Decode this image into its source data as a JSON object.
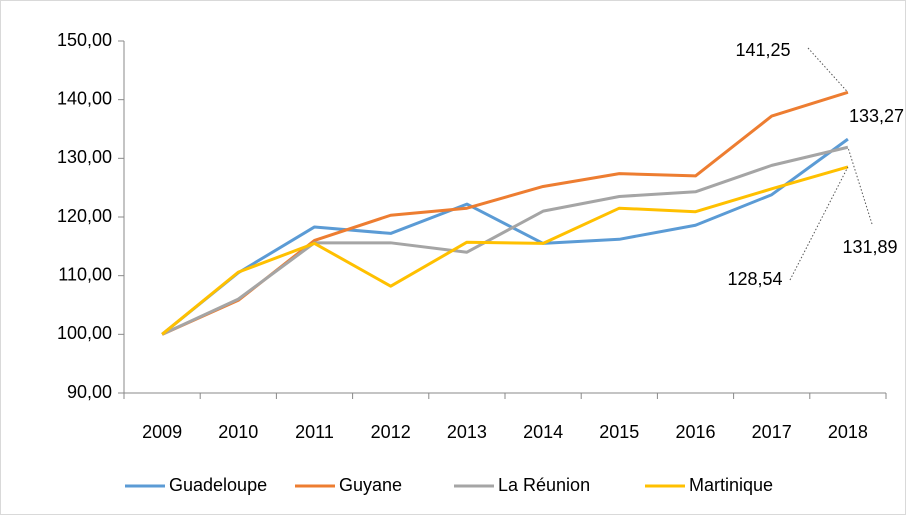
{
  "chart_data": {
    "type": "line",
    "categories": [
      "2009",
      "2010",
      "2011",
      "2012",
      "2013",
      "2014",
      "2015",
      "2016",
      "2017",
      "2018"
    ],
    "series": [
      {
        "name": "Guadeloupe",
        "color": "#5b9bd5",
        "values": [
          100,
          110.5,
          118.3,
          117.2,
          122.2,
          115.5,
          116.2,
          118.6,
          123.8,
          133.27
        ],
        "value_labels": [
          null,
          null,
          null,
          null,
          null,
          null,
          null,
          null,
          null,
          "133,27"
        ]
      },
      {
        "name": "Guyane",
        "color": "#ed7d31",
        "values": [
          100,
          105.8,
          116,
          120.3,
          121.5,
          125.2,
          127.4,
          127.0,
          137.2,
          141.25
        ],
        "value_labels": [
          null,
          null,
          null,
          null,
          null,
          null,
          null,
          null,
          null,
          "141,25"
        ]
      },
      {
        "name": "La Réunion",
        "color": "#a5a5a5",
        "values": [
          100,
          106,
          115.6,
          115.6,
          114.0,
          121.0,
          123.5,
          124.3,
          128.8,
          131.89
        ],
        "value_labels": [
          null,
          null,
          null,
          null,
          null,
          null,
          null,
          null,
          null,
          "131,89"
        ]
      },
      {
        "name": "Martinique",
        "color": "#ffc000",
        "values": [
          100,
          110.6,
          115.5,
          108.2,
          115.7,
          115.5,
          121.5,
          120.9,
          124.8,
          128.54
        ],
        "value_labels": [
          null,
          null,
          null,
          null,
          null,
          null,
          null,
          null,
          null,
          "128,54"
        ]
      }
    ],
    "ylim": [
      90,
      150
    ],
    "yticks": [
      {
        "value": 90,
        "label": "90,00"
      },
      {
        "value": 100,
        "label": "100,00"
      },
      {
        "value": 110,
        "label": "110,00"
      },
      {
        "value": 120,
        "label": "120,00"
      },
      {
        "value": 130,
        "label": "130,00"
      },
      {
        "value": 140,
        "label": "140,00"
      },
      {
        "value": 150,
        "label": "150,00"
      }
    ],
    "grid": false,
    "legend": "bottom"
  }
}
